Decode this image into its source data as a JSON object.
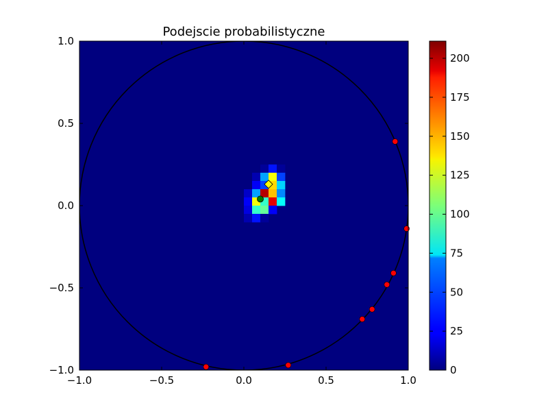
{
  "chart_data": {
    "type": "heatmap",
    "title": "Podejscie probabilistyczne",
    "xlabel": "",
    "ylabel": "",
    "xlim": [
      -1.0,
      1.0
    ],
    "ylim": [
      -1.0,
      1.0
    ],
    "x_ticks": [
      "−1.0",
      "−0.5",
      "0.0",
      "0.5",
      "1.0"
    ],
    "y_ticks": [
      "−1.0",
      "−0.5",
      "0.0",
      "0.5",
      "1.0"
    ],
    "colormap": "jet",
    "colorbar": {
      "range": [
        0,
        211
      ],
      "ticks": [
        "0",
        "25",
        "50",
        "75",
        "100",
        "125",
        "150",
        "175",
        "200"
      ]
    },
    "grid": false,
    "bin_size": 0.05,
    "bins": [
      {
        "x": 0.1,
        "y": 0.2,
        "v": 5
      },
      {
        "x": 0.15,
        "y": 0.2,
        "v": 30
      },
      {
        "x": 0.2,
        "y": 0.2,
        "v": 5
      },
      {
        "x": 0.05,
        "y": 0.15,
        "v": 10
      },
      {
        "x": 0.1,
        "y": 0.15,
        "v": 60
      },
      {
        "x": 0.15,
        "y": 0.15,
        "v": 130
      },
      {
        "x": 0.2,
        "y": 0.15,
        "v": 40
      },
      {
        "x": 0.05,
        "y": 0.1,
        "v": 25
      },
      {
        "x": 0.1,
        "y": 0.1,
        "v": 40
      },
      {
        "x": 0.15,
        "y": 0.1,
        "v": 140
      },
      {
        "x": 0.2,
        "y": 0.1,
        "v": 70
      },
      {
        "x": 0.0,
        "y": 0.05,
        "v": 15
      },
      {
        "x": 0.05,
        "y": 0.05,
        "v": 60
      },
      {
        "x": 0.1,
        "y": 0.05,
        "v": 200
      },
      {
        "x": 0.15,
        "y": 0.05,
        "v": 145
      },
      {
        "x": 0.2,
        "y": 0.05,
        "v": 55
      },
      {
        "x": 0.0,
        "y": 0.0,
        "v": 25
      },
      {
        "x": 0.05,
        "y": 0.0,
        "v": 130
      },
      {
        "x": 0.1,
        "y": 0.0,
        "v": 90
      },
      {
        "x": 0.15,
        "y": 0.0,
        "v": 190
      },
      {
        "x": 0.2,
        "y": 0.0,
        "v": 80
      },
      {
        "x": 0.0,
        "y": -0.05,
        "v": 20
      },
      {
        "x": 0.05,
        "y": -0.05,
        "v": 90
      },
      {
        "x": 0.1,
        "y": -0.05,
        "v": 100
      },
      {
        "x": 0.15,
        "y": -0.05,
        "v": 25
      },
      {
        "x": 0.0,
        "y": -0.1,
        "v": 10
      },
      {
        "x": 0.05,
        "y": -0.1,
        "v": 30
      },
      {
        "x": 0.1,
        "y": -0.1,
        "v": 5
      }
    ],
    "circle": {
      "cx": 0,
      "cy": 0,
      "r": 1
    },
    "sensors": [
      {
        "x": 0.92,
        "y": 0.39
      },
      {
        "x": 0.99,
        "y": -0.14
      },
      {
        "x": 0.91,
        "y": -0.41
      },
      {
        "x": 0.87,
        "y": -0.48
      },
      {
        "x": 0.78,
        "y": -0.63
      },
      {
        "x": 0.72,
        "y": -0.69
      },
      {
        "x": -0.23,
        "y": -0.98
      },
      {
        "x": 0.27,
        "y": -0.97
      }
    ],
    "true_point": {
      "x": 0.1,
      "y": 0.04
    },
    "estimate_point": {
      "x": 0.15,
      "y": 0.13
    },
    "colors": {
      "sensor": "#ff0000",
      "true_point": "#008000",
      "estimate_point": "#ffff00",
      "circle": "#000000"
    }
  }
}
